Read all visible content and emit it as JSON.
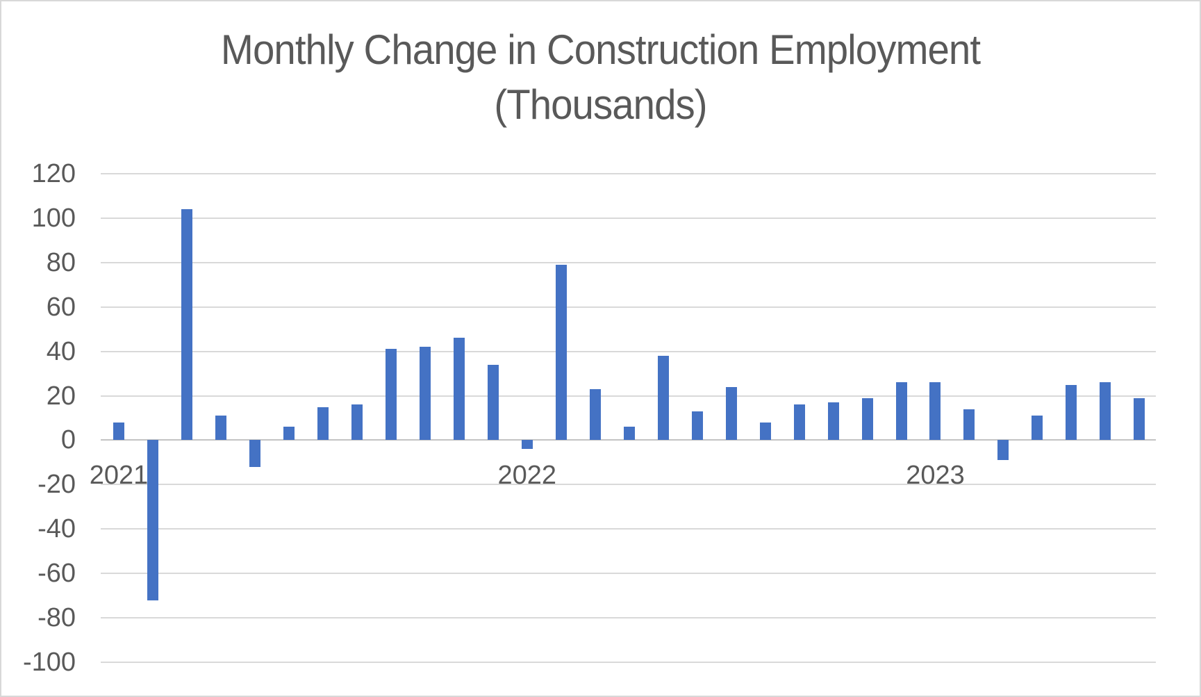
{
  "title": {
    "line1": "Monthly Change in Construction Employment",
    "line2": "(Thousands)"
  },
  "colors": {
    "bar": "#4472C4",
    "gridline": "#D9D9D9",
    "axis_line": "#C3C3C3",
    "text": "#595959",
    "background": "#FFFFFF",
    "page_border": "#D8D8D8"
  },
  "y_axis": {
    "min": -100,
    "max": 120,
    "tick_step": 20,
    "tick_values": [
      120,
      100,
      80,
      60,
      40,
      20,
      0,
      -20,
      -40,
      -60,
      -80,
      -100
    ]
  },
  "x_axis": {
    "tick_labels": [
      {
        "label": "2021",
        "month_index": 0
      },
      {
        "label": "2022",
        "month_index": 12
      },
      {
        "label": "2023",
        "month_index": 24
      }
    ]
  },
  "chart_data": {
    "type": "bar",
    "title": "Monthly Change in Construction Employment (Thousands)",
    "x": [
      "2021-01",
      "2021-02",
      "2021-03",
      "2021-04",
      "2021-05",
      "2021-06",
      "2021-07",
      "2021-08",
      "2021-09",
      "2021-10",
      "2021-11",
      "2021-12",
      "2022-01",
      "2022-02",
      "2022-03",
      "2022-04",
      "2022-05",
      "2022-06",
      "2022-07",
      "2022-08",
      "2022-09",
      "2022-10",
      "2022-11",
      "2022-12",
      "2023-01",
      "2023-02",
      "2023-03",
      "2023-04",
      "2023-05",
      "2023-06",
      "2023-07"
    ],
    "values": [
      8,
      -72,
      104,
      11,
      -12,
      6,
      15,
      16,
      41,
      42,
      46,
      34,
      -4,
      79,
      23,
      6,
      38,
      13,
      24,
      8,
      16,
      17,
      19,
      26,
      26,
      14,
      -9,
      11,
      25,
      26,
      19
    ],
    "xlabel": "",
    "ylabel": "",
    "ylim": [
      -100,
      120
    ],
    "grid": "horizontal",
    "legend": "none",
    "bar_color": "#4472C4"
  }
}
